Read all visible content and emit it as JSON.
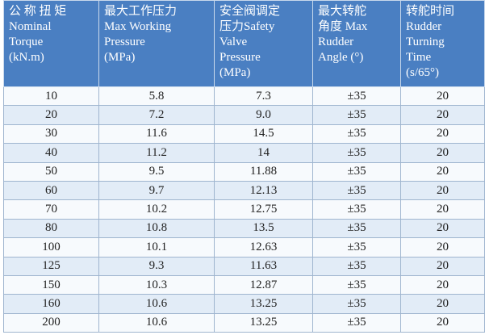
{
  "table": {
    "header": [
      [
        "公 称 扭 矩",
        "Nominal",
        "Torque",
        "(kN.m)"
      ],
      [
        "最大工作压力",
        "Max  Working",
        "Pressure",
        "(MPa)"
      ],
      [
        "安全阀调定",
        "压力Safety",
        "Valve",
        "Pressure",
        "(MPa)"
      ],
      [
        "最大转舵",
        "角度 Max",
        "Rudder",
        "Angle (°)"
      ],
      [
        "转舵时间",
        "Rudder",
        "Turning",
        "Time",
        "(s/65°)"
      ]
    ],
    "rows": [
      [
        "10",
        "5.8",
        "7.3",
        "±35",
        "20"
      ],
      [
        "20",
        "7.2",
        "9.0",
        "±35",
        "20"
      ],
      [
        "30",
        "11.6",
        "14.5",
        "±35",
        "20"
      ],
      [
        "40",
        "11.2",
        "14",
        "±35",
        "20"
      ],
      [
        "50",
        "9.5",
        "11.88",
        "±35",
        "20"
      ],
      [
        "60",
        "9.7",
        "12.13",
        "±35",
        "20"
      ],
      [
        "70",
        "10.2",
        "12.75",
        "±35",
        "20"
      ],
      [
        "80",
        "10.8",
        "13.5",
        "±35",
        "20"
      ],
      [
        "100",
        "10.1",
        "12.63",
        "±35",
        "20"
      ],
      [
        "125",
        "9.3",
        "11.63",
        "±35",
        "20"
      ],
      [
        "150",
        "10.3",
        "12.87",
        "±35",
        "20"
      ],
      [
        "160",
        "10.6",
        "13.25",
        "±35",
        "20"
      ],
      [
        "200",
        "10.6",
        "13.25",
        "±35",
        "20"
      ]
    ]
  }
}
